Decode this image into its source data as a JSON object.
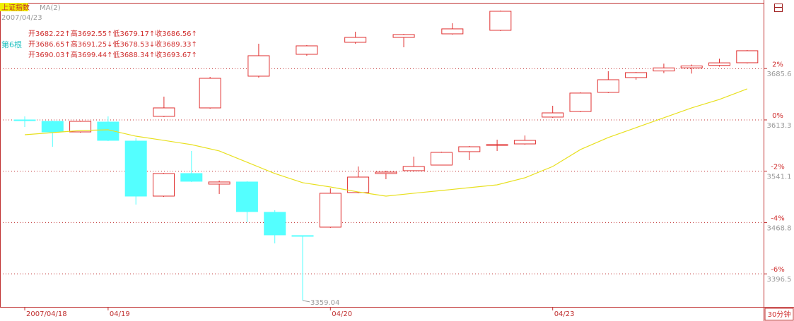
{
  "header": {
    "index_name": "上证指数",
    "date": "2007/04/23",
    "count_label": "第6根",
    "info_lines": [
      "开3682.22↑高3692.55↑低3679.17↑收3686.56↑",
      "开3686.65↑高3691.25↓低3678.53↓收3689.33↑",
      "开3690.03↑高3699.44↑低3688.34↑收3693.67↑"
    ],
    "period": "30分钟"
  },
  "chart_data": [
    {
      "type": "candlestick",
      "categories": [
        "2007/04/18",
        null,
        null,
        "04/19",
        null,
        null,
        null,
        null,
        null,
        null,
        null,
        "04/20",
        null,
        null,
        null,
        null,
        null,
        null,
        null,
        "04/23",
        null,
        null,
        null,
        null,
        null,
        null,
        null
      ],
      "open": [
        3613.3,
        3611.3,
        3596.4,
        3610.3,
        3583.5,
        3506.0,
        3537.8,
        3522.9,
        3525.9,
        3483.2,
        3450.4,
        3462.3,
        3511.0,
        3537.8,
        3541.8,
        3549.7,
        3568.6,
        3578.0,
        3579.5,
        3617.3,
        3625.2,
        3652.1,
        3672.9,
        3682.22,
        3686.65,
        3690.03,
        3693.8
      ],
      "high": [
        3618.3,
        3612.3,
        3612.3,
        3618.3,
        3587.5,
        3538.8,
        3569.6,
        3527.9,
        3526.9,
        3486.1,
        3450.4,
        3516.9,
        3547.7,
        3541.8,
        3561.6,
        3568.6,
        3576.5,
        3585.5,
        3591.4,
        3633.2,
        3652.1,
        3681.9,
        3680.9,
        3692.55,
        3691.25,
        3699.44,
        3711.7
      ],
      "low": [
        3603.4,
        3575.5,
        3595.4,
        3583.5,
        3494.1,
        3505.0,
        3525.9,
        3509.0,
        3469.2,
        3439.4,
        3359.04,
        3461.3,
        3510.0,
        3529.8,
        3540.8,
        3549.7,
        3556.7,
        3569.6,
        3578.5,
        3616.3,
        3624.2,
        3651.1,
        3669.9,
        3679.17,
        3678.53,
        3688.34,
        3692.8
      ],
      "close": [
        3613.0,
        3596.4,
        3611.3,
        3584.5,
        3506.0,
        3537.8,
        3526.9,
        3525.9,
        3484.2,
        3451.4,
        3450.1,
        3510.0,
        3532.8,
        3539.8,
        3547.7,
        3567.6,
        3575.5,
        3578.5,
        3584.5,
        3623.2,
        3651.1,
        3669.9,
        3679.9,
        3686.56,
        3689.33,
        3693.67,
        3710.7
      ],
      "up_color": "#e03030",
      "down_color": "#54ffff",
      "ma": {
        "name": "MA(2)",
        "color": "#e8e020",
        "values": [
          3592.4,
          3595.4,
          3598.4,
          3599.4,
          3590.4,
          3584.5,
          3578.5,
          3569.6,
          3553.7,
          3537.8,
          3524.9,
          3518.9,
          3511.9,
          3506.0,
          3510.0,
          3513.9,
          3517.9,
          3521.9,
          3531.8,
          3547.7,
          3571.6,
          3588.5,
          3602.4,
          3616.3,
          3630.2,
          3642.1,
          3657.0
        ]
      },
      "ylim": [
        3350,
        3777.2
      ],
      "yticks": [
        3685.6,
        3613.3,
        3541.1,
        3468.8,
        3396.5
      ],
      "y2lim": [
        -7.29,
        4.54
      ],
      "y2ticks": [
        {
          "value": 2,
          "label": "2%"
        },
        {
          "value": 0,
          "label": "0%"
        },
        {
          "value": -2,
          "label": "-2%"
        },
        {
          "value": -4,
          "label": "-4%"
        },
        {
          "value": -6,
          "label": "-6%"
        }
      ],
      "grid": true
    },
    {
      "type": "candlestick",
      "x": [
        5.01,
        6.67,
        8.42,
        10.15,
        11.9,
        13.64,
        15.39,
        17.12
      ],
      "open": [
        3618.3,
        3630.2,
        3674.9,
        3705.7,
        3722.6,
        3729.5,
        3734.5,
        3739.5
      ],
      "high": [
        3646.1,
        3673.9,
        3720.6,
        3718.6,
        3737.5,
        3734.5,
        3749.4,
        3767.3
      ],
      "low": [
        3617.3,
        3629.2,
        3672.9,
        3703.7,
        3720.6,
        3715.6,
        3733.5,
        3738.5
      ],
      "close": [
        3630.2,
        3671.9,
        3703.7,
        3717.6,
        3729.5,
        3733.5,
        3741.5,
        3766.3
      ],
      "up_color": "#e03030",
      "down_color": "#54ffff"
    }
  ]
}
